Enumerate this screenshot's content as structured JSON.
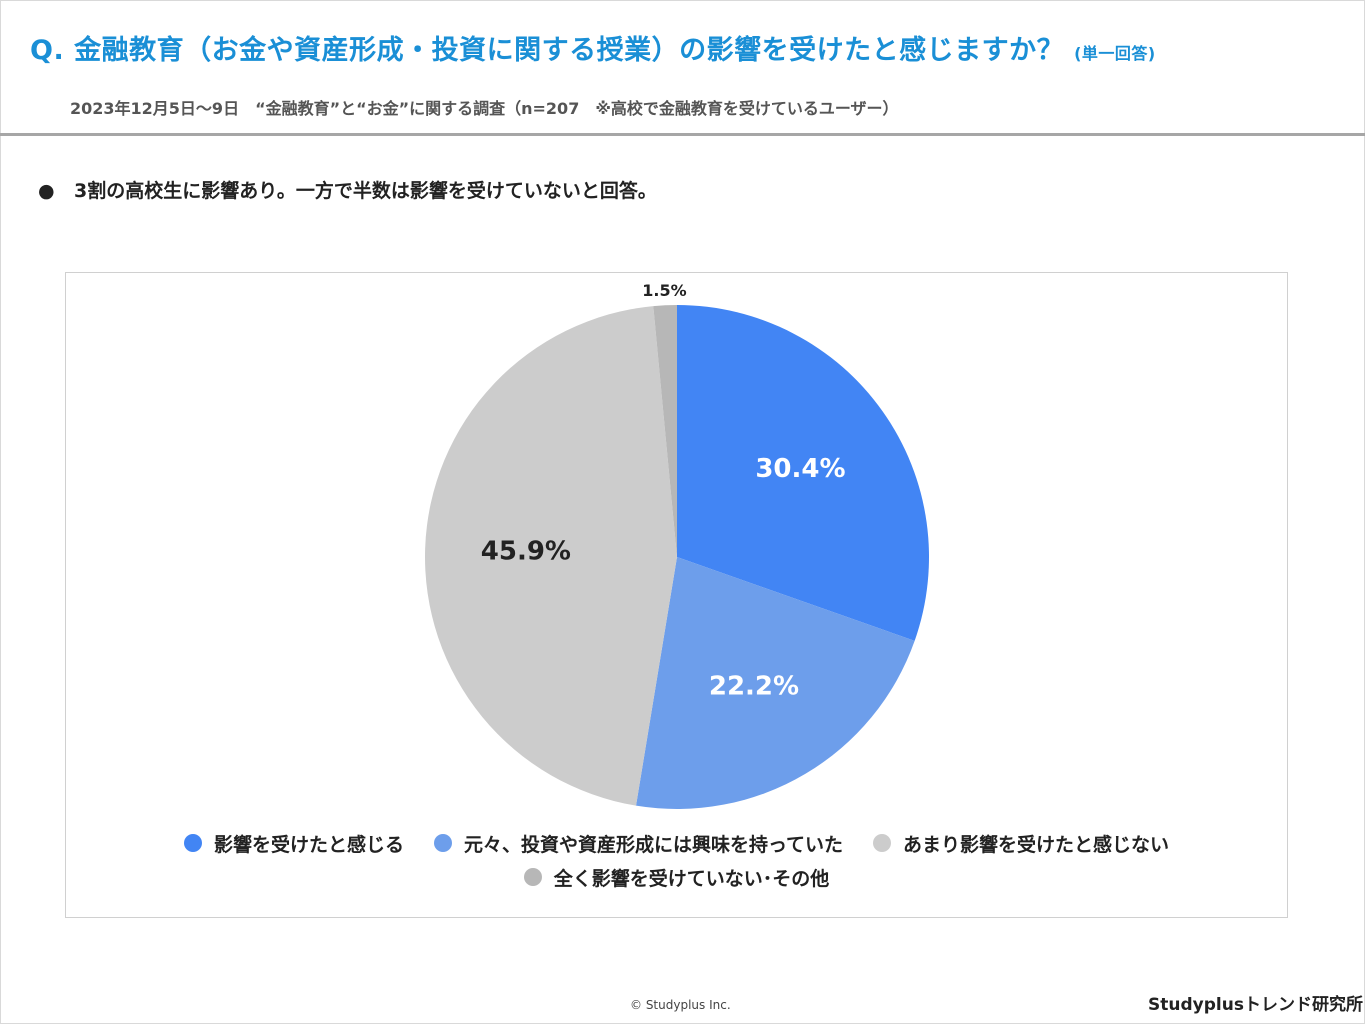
{
  "header": {
    "title": "Q. 金融教育（お金や資産形成・投資に関する授業）の影響を受けたと感じますか？",
    "title_note": "(単一回答)",
    "subtitle": "2023年12月5日〜9日　“金融教育”と“お金”に関する調査（n=207　※高校で金融教育を受けているユーザー）"
  },
  "summary": {
    "bullet": "●",
    "text": "3割の高校生に影響あり。一方で半数は影響を受けていないと回答。"
  },
  "chart_data": {
    "type": "pie",
    "categories": [
      "影響を受けたと感じる",
      "元々、投資や資産形成には興味を持っていた",
      "あまり影響を受けたと感じない",
      "全く影響を受けていない･その他"
    ],
    "values": [
      30.4,
      22.2,
      45.9,
      1.5
    ],
    "labels": [
      "30.4%",
      "22.2%",
      "45.9%",
      "1.5%"
    ],
    "colors": [
      "#4285f4",
      "#6d9eeb",
      "#cccccc",
      "#b7b7b7"
    ],
    "label_colors": [
      "#ffffff",
      "#ffffff",
      "#222222",
      "#222222"
    ],
    "start": "top",
    "direction": "clockwise",
    "legend_position": "bottom"
  },
  "footer": {
    "copyright": "© Studyplus Inc.",
    "brand": "Studyplusトレンド研究所"
  }
}
